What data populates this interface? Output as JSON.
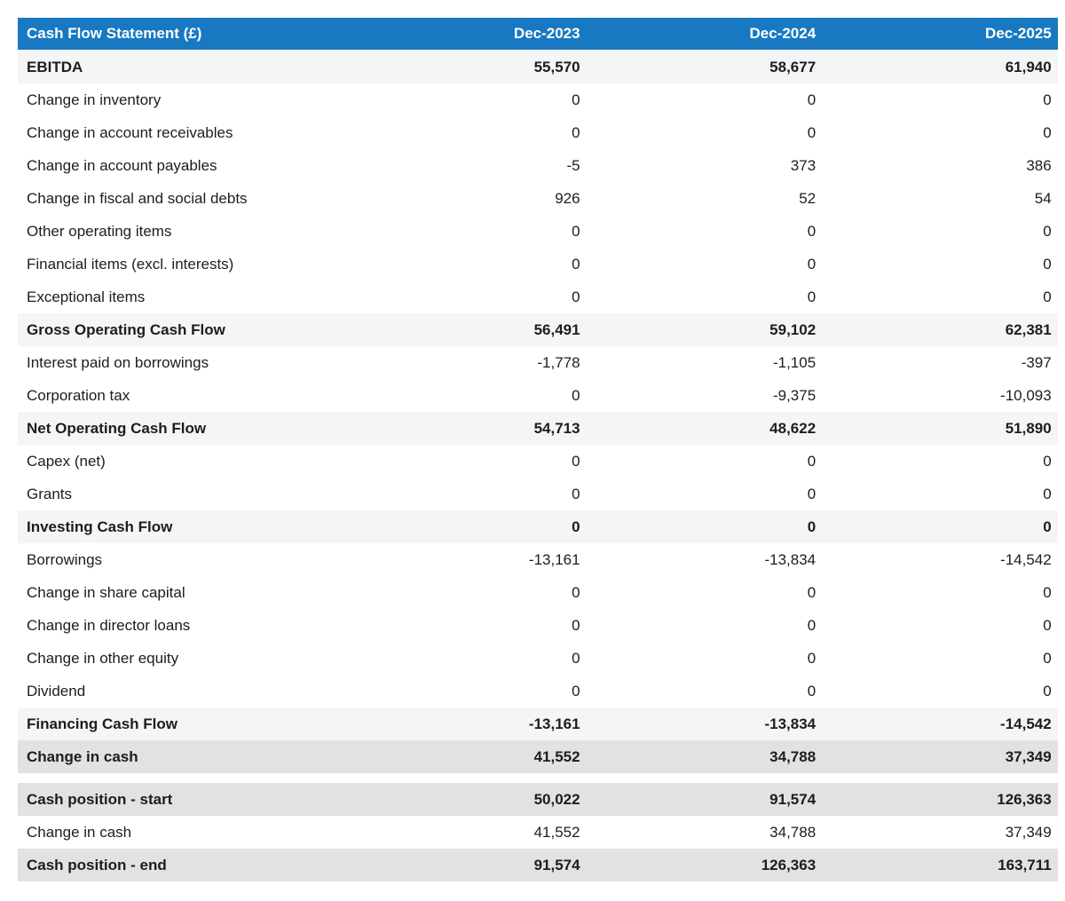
{
  "chart_data": {
    "type": "table",
    "title": "Cash Flow Statement (£)",
    "columns": [
      "Dec-2023",
      "Dec-2024",
      "Dec-2025"
    ],
    "rows": [
      {
        "label": "EBITDA",
        "values": [
          "55,570",
          "58,677",
          "61,940"
        ],
        "style": "subtotal"
      },
      {
        "label": "Change in inventory",
        "values": [
          "0",
          "0",
          "0"
        ],
        "style": "normal"
      },
      {
        "label": "Change in account receivables",
        "values": [
          "0",
          "0",
          "0"
        ],
        "style": "normal"
      },
      {
        "label": "Change in account payables",
        "values": [
          "-5",
          "373",
          "386"
        ],
        "style": "normal"
      },
      {
        "label": "Change in fiscal and social debts",
        "values": [
          "926",
          "52",
          "54"
        ],
        "style": "normal"
      },
      {
        "label": "Other operating items",
        "values": [
          "0",
          "0",
          "0"
        ],
        "style": "normal"
      },
      {
        "label": "Financial items (excl. interests)",
        "values": [
          "0",
          "0",
          "0"
        ],
        "style": "normal"
      },
      {
        "label": "Exceptional items",
        "values": [
          "0",
          "0",
          "0"
        ],
        "style": "normal"
      },
      {
        "label": "Gross Operating Cash Flow",
        "values": [
          "56,491",
          "59,102",
          "62,381"
        ],
        "style": "subtotal"
      },
      {
        "label": "Interest paid on borrowings",
        "values": [
          "-1,778",
          "-1,105",
          "-397"
        ],
        "style": "normal"
      },
      {
        "label": "Corporation tax",
        "values": [
          "0",
          "-9,375",
          "-10,093"
        ],
        "style": "normal"
      },
      {
        "label": "Net Operating Cash Flow",
        "values": [
          "54,713",
          "48,622",
          "51,890"
        ],
        "style": "subtotal"
      },
      {
        "label": "Capex (net)",
        "values": [
          "0",
          "0",
          "0"
        ],
        "style": "normal"
      },
      {
        "label": "Grants",
        "values": [
          "0",
          "0",
          "0"
        ],
        "style": "normal"
      },
      {
        "label": "Investing Cash Flow",
        "values": [
          "0",
          "0",
          "0"
        ],
        "style": "subtotal"
      },
      {
        "label": "Borrowings",
        "values": [
          "-13,161",
          "-13,834",
          "-14,542"
        ],
        "style": "normal"
      },
      {
        "label": "Change in share capital",
        "values": [
          "0",
          "0",
          "0"
        ],
        "style": "normal"
      },
      {
        "label": "Change in director loans",
        "values": [
          "0",
          "0",
          "0"
        ],
        "style": "normal"
      },
      {
        "label": "Change in other equity",
        "values": [
          "0",
          "0",
          "0"
        ],
        "style": "normal"
      },
      {
        "label": "Dividend",
        "values": [
          "0",
          "0",
          "0"
        ],
        "style": "normal"
      },
      {
        "label": "Financing Cash Flow",
        "values": [
          "-13,161",
          "-13,834",
          "-14,542"
        ],
        "style": "subtotal"
      },
      {
        "label": "Change in cash",
        "values": [
          "41,552",
          "34,788",
          "37,349"
        ],
        "style": "total"
      },
      {
        "label": "Cash position - start",
        "values": [
          "50,022",
          "91,574",
          "126,363"
        ],
        "style": "total",
        "spacer_before": true
      },
      {
        "label": "Change in cash",
        "values": [
          "41,552",
          "34,788",
          "37,349"
        ],
        "style": "normal"
      },
      {
        "label": "Cash position - end",
        "values": [
          "91,574",
          "126,363",
          "163,711"
        ],
        "style": "total"
      }
    ]
  },
  "colors": {
    "header_bg": "#1879c2",
    "header_text": "#ffffff",
    "subtotal_row_bg": "#f5f5f6",
    "total_row_bg": "#e2e2e2",
    "body_text": "#1d1d1f"
  }
}
